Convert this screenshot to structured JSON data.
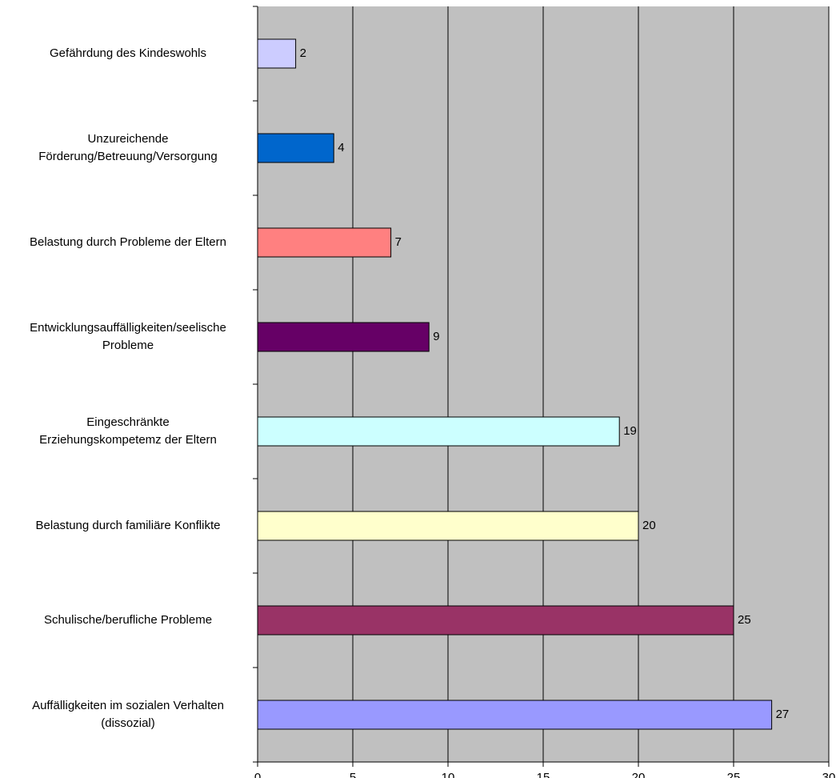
{
  "chart_data": {
    "type": "bar",
    "orientation": "horizontal",
    "title": "",
    "xlabel": "",
    "ylabel": "",
    "xlim": [
      0,
      30
    ],
    "xticks": [
      0,
      5,
      10,
      15,
      20,
      25,
      30
    ],
    "grid": "vertical",
    "legend": "none",
    "plot_background": "#c0c0c0",
    "categories": [
      [
        "Gefährdung des Kindeswohls"
      ],
      [
        "Unzureichende",
        "Förderung/Betreuung/Versorgung"
      ],
      [
        "Belastung durch Probleme der Eltern"
      ],
      [
        "Entwicklungsauffälligkeiten/seelische",
        "Probleme"
      ],
      [
        "Eingeschränkte",
        "Erziehungskompetemz der Eltern"
      ],
      [
        "Belastung durch familiäre Konflikte"
      ],
      [
        "Schulische/berufliche Probleme"
      ],
      [
        "Auffälligkeiten im sozialen Verhalten",
        "(dissozial)"
      ]
    ],
    "values": [
      2,
      4,
      7,
      9,
      19,
      20,
      25,
      27
    ],
    "colors": [
      "#ccccff",
      "#0066cc",
      "#ff8080",
      "#660066",
      "#ccffff",
      "#ffffcc",
      "#993366",
      "#9999ff"
    ]
  }
}
